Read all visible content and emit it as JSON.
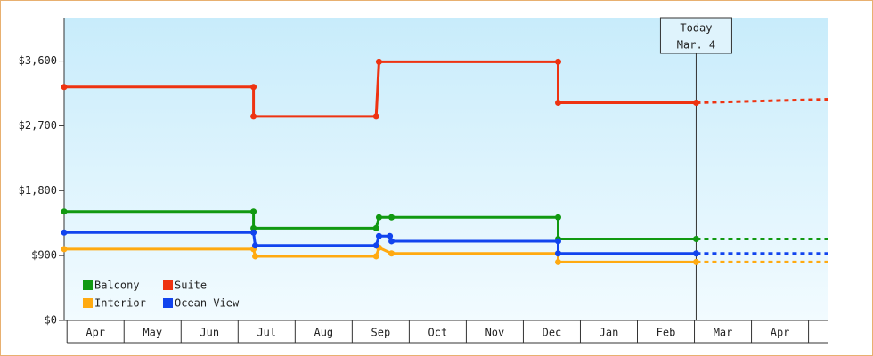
{
  "chart_data": {
    "type": "step-line",
    "xlim": [
      -0.05,
      13.35
    ],
    "xticks": [
      {
        "value": 0.5,
        "label": "Apr"
      },
      {
        "value": 1.5,
        "label": "May"
      },
      {
        "value": 2.5,
        "label": "Jun"
      },
      {
        "value": 3.5,
        "label": "Jul"
      },
      {
        "value": 4.5,
        "label": "Aug"
      },
      {
        "value": 5.5,
        "label": "Sep"
      },
      {
        "value": 6.5,
        "label": "Oct"
      },
      {
        "value": 7.5,
        "label": "Nov"
      },
      {
        "value": 8.5,
        "label": "Dec"
      },
      {
        "value": 9.5,
        "label": "Jan"
      },
      {
        "value": 10.5,
        "label": "Feb"
      },
      {
        "value": 11.5,
        "label": "Mar"
      },
      {
        "value": 12.5,
        "label": "Apr"
      }
    ],
    "ylim": [
      0,
      4200
    ],
    "yticks": [
      {
        "value": 0,
        "label": "$0"
      },
      {
        "value": 900,
        "label": "$900"
      },
      {
        "value": 1800,
        "label": "$1,800"
      },
      {
        "value": 2700,
        "label": "$2,700"
      },
      {
        "value": 3600,
        "label": "$3,600"
      }
    ],
    "today": {
      "x": 11.03,
      "lines": [
        "Today",
        "Mar. 4"
      ]
    },
    "series": [
      {
        "name": "Balcony",
        "color": "#119911",
        "x": [
          -0.05,
          3.27,
          3.27,
          5.42,
          5.47,
          5.69,
          8.61,
          8.61,
          11.03
        ],
        "values": [
          1510,
          1510,
          1280,
          1280,
          1430,
          1430,
          1430,
          1130,
          1130
        ],
        "forecast_x": [
          11.03,
          13.35
        ],
        "forecast": [
          1130,
          1130
        ]
      },
      {
        "name": "Suite",
        "color": "#ee3311",
        "x": [
          -0.05,
          3.27,
          3.27,
          5.42,
          5.47,
          8.61,
          8.61,
          11.03
        ],
        "values": [
          3240,
          3240,
          2830,
          2830,
          3590,
          3590,
          3020,
          3020
        ],
        "forecast_x": [
          11.03,
          13.35
        ],
        "forecast": [
          3020,
          3070
        ]
      },
      {
        "name": "Interior",
        "color": "#ffaa11",
        "x": [
          -0.05,
          3.27,
          3.3,
          5.42,
          5.47,
          5.69,
          8.61,
          8.61,
          11.03
        ],
        "values": [
          990,
          990,
          890,
          890,
          1010,
          930,
          930,
          810,
          810
        ],
        "forecast_x": [
          11.03,
          13.35
        ],
        "forecast": [
          810,
          810
        ]
      },
      {
        "name": "Ocean View",
        "color": "#1144ee",
        "x": [
          -0.05,
          3.27,
          3.3,
          5.42,
          5.47,
          5.66,
          5.69,
          8.61,
          8.61,
          11.03
        ],
        "values": [
          1220,
          1220,
          1040,
          1040,
          1170,
          1170,
          1100,
          1100,
          930,
          930
        ],
        "forecast_x": [
          11.03,
          13.35
        ],
        "forecast": [
          930,
          930
        ]
      }
    ]
  }
}
